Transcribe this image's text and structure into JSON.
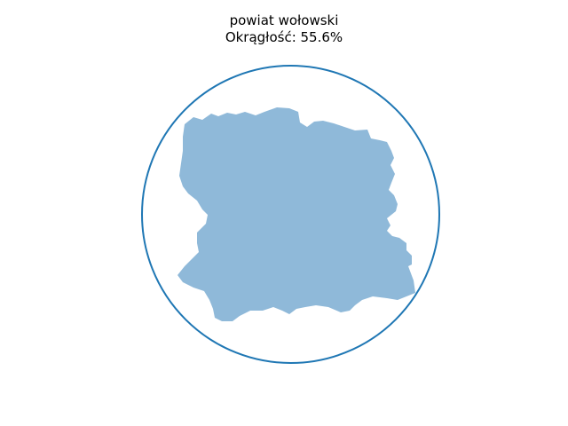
{
  "figure": {
    "title_line1": "powiat wołowski",
    "title_line2": "Okrągłość: 55.6%"
  },
  "colors": {
    "circle_stroke": "#1f77b4",
    "shape_fill": "#8fb9d9"
  }
}
